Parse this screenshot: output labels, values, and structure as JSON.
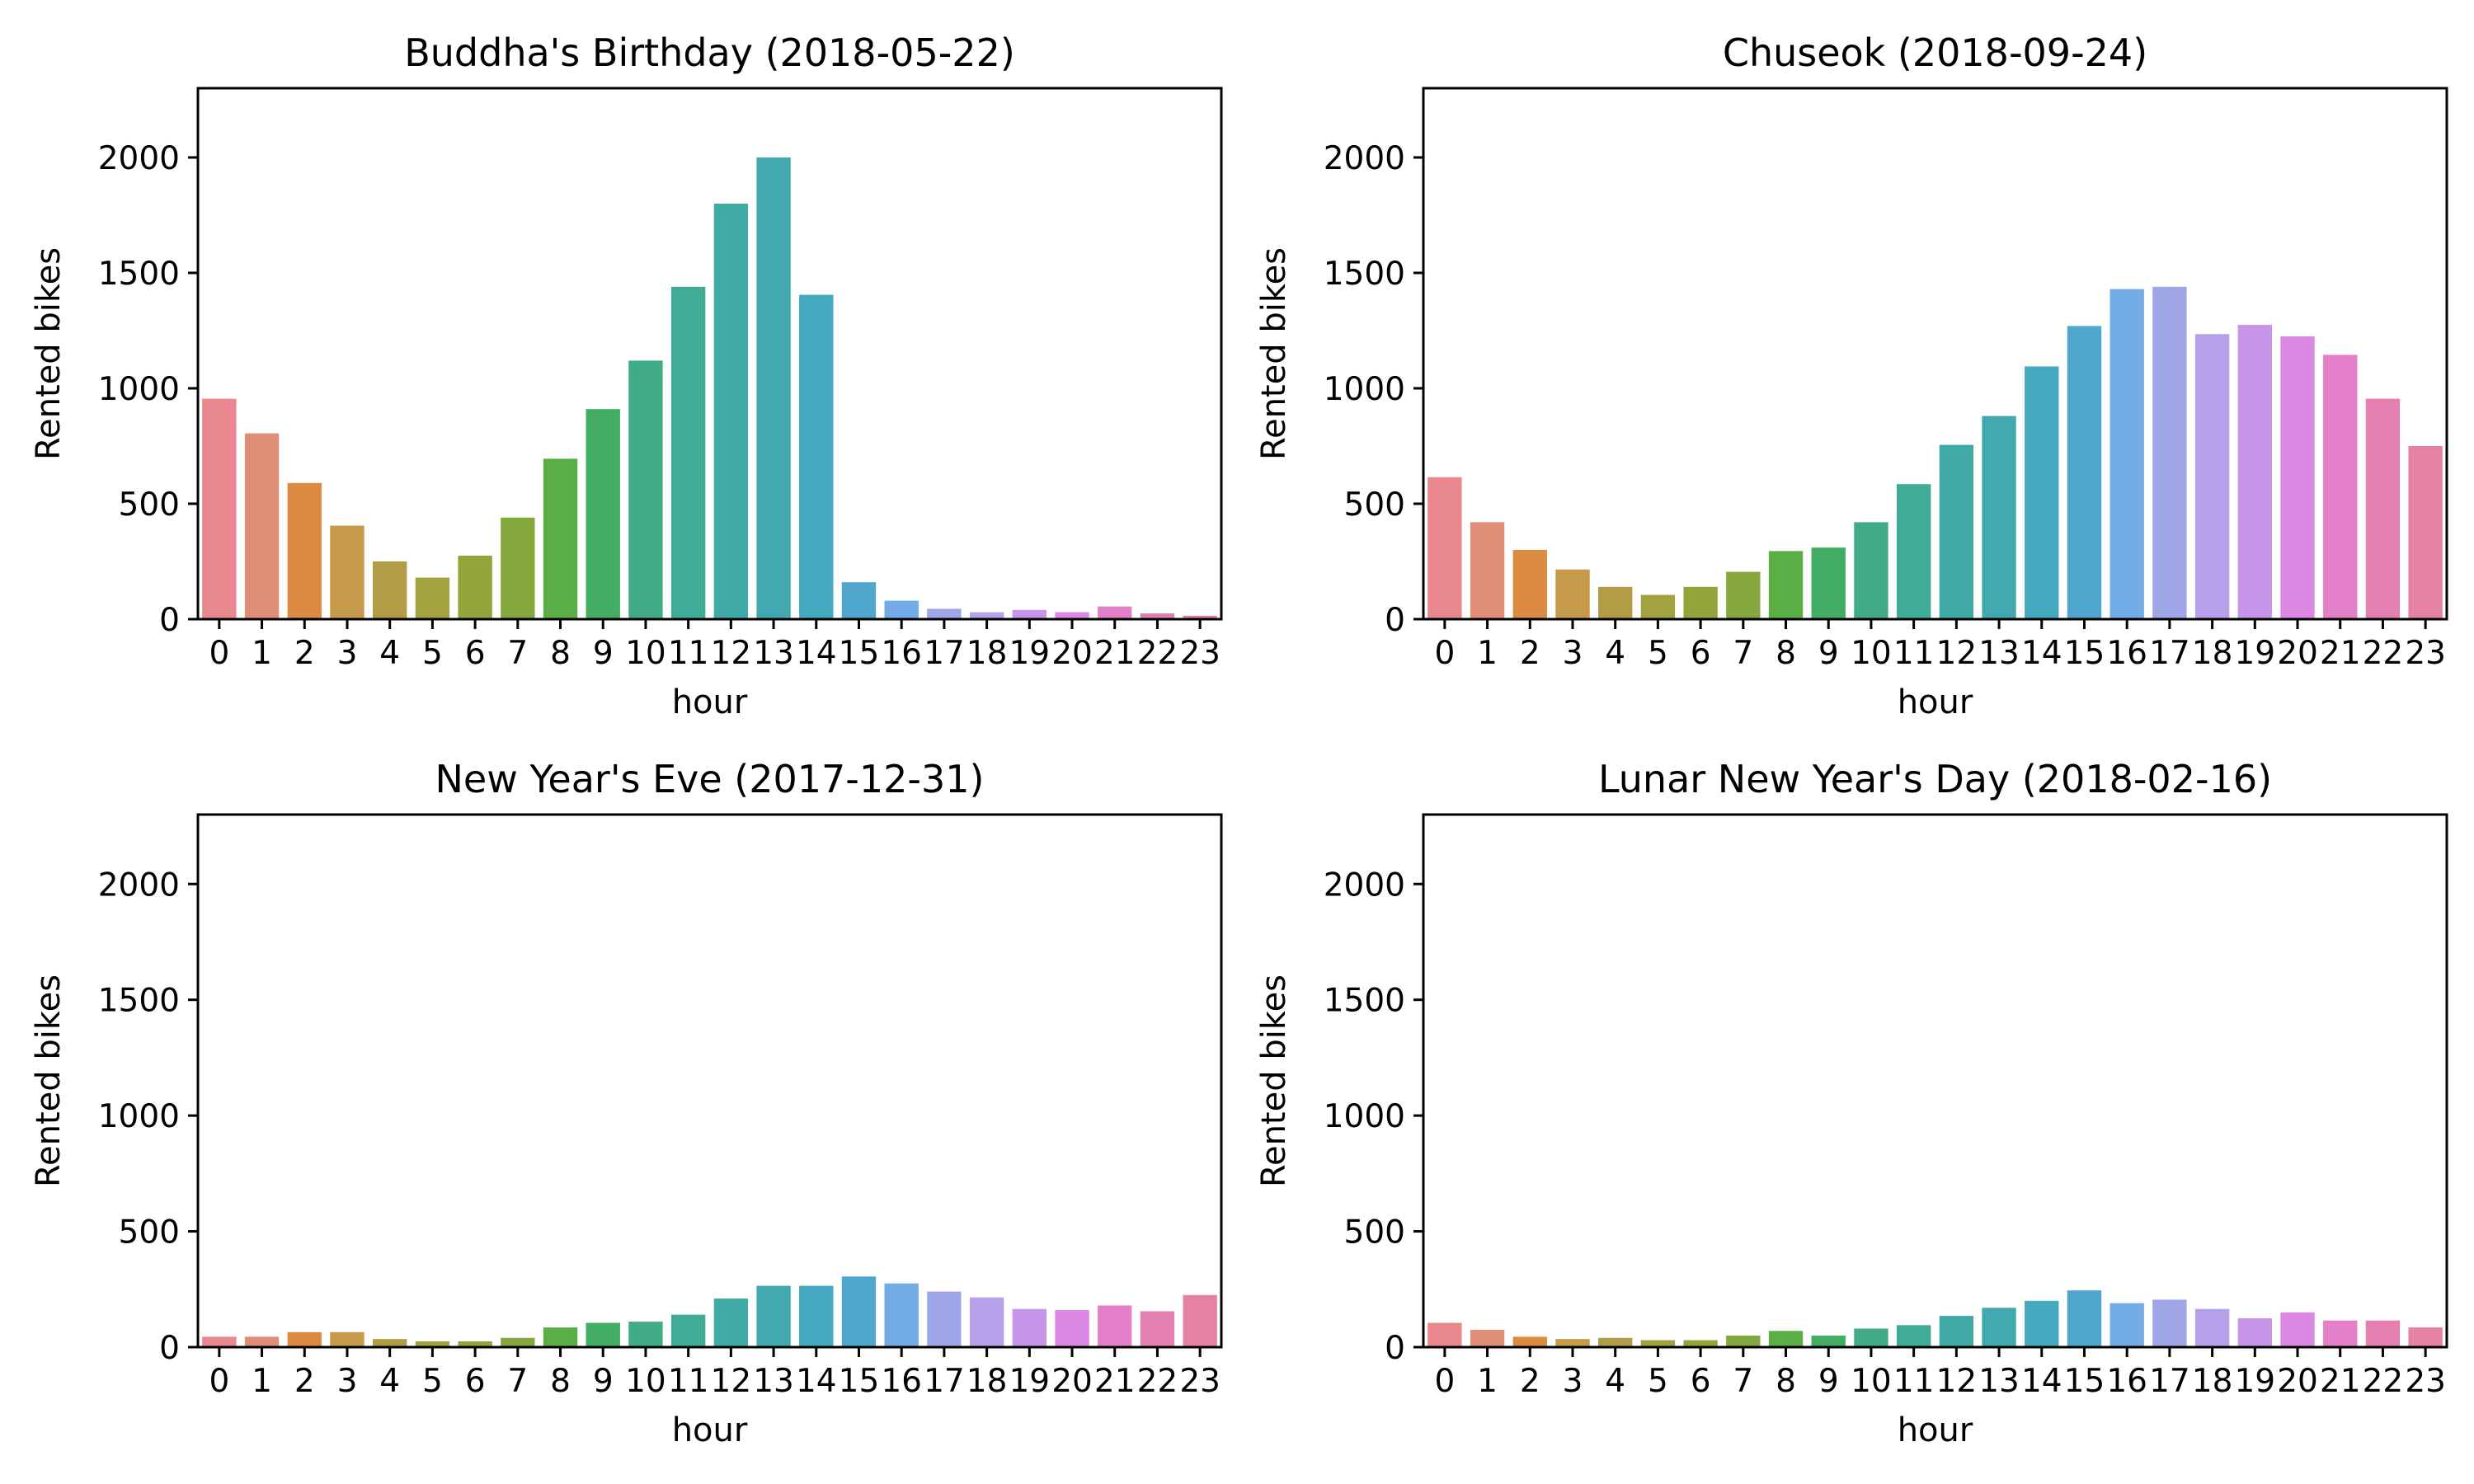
{
  "chart_data": [
    {
      "type": "bar",
      "title": "Buddha's Birthday (2018-05-22)",
      "xlabel": "hour",
      "ylabel": "Rented bikes",
      "ylim": [
        0,
        2300
      ],
      "yticks": [
        "0",
        "500",
        "1000",
        "1500",
        "2000"
      ],
      "categories": [
        "0",
        "1",
        "2",
        "3",
        "4",
        "5",
        "6",
        "7",
        "8",
        "9",
        "10",
        "11",
        "12",
        "13",
        "14",
        "15",
        "16",
        "17",
        "18",
        "19",
        "20",
        "21",
        "22",
        "23"
      ],
      "values": [
        955,
        805,
        590,
        405,
        250,
        180,
        275,
        440,
        695,
        910,
        1120,
        1440,
        1800,
        2000,
        1405,
        160,
        80,
        45,
        30,
        40,
        30,
        55,
        25,
        15
      ]
    },
    {
      "type": "bar",
      "title": "Chuseok (2018-09-24)",
      "xlabel": "hour",
      "ylabel": "Rented bikes",
      "ylim": [
        0,
        2300
      ],
      "yticks": [
        "0",
        "500",
        "1000",
        "1500",
        "2000"
      ],
      "categories": [
        "0",
        "1",
        "2",
        "3",
        "4",
        "5",
        "6",
        "7",
        "8",
        "9",
        "10",
        "11",
        "12",
        "13",
        "14",
        "15",
        "16",
        "17",
        "18",
        "19",
        "20",
        "21",
        "22",
        "23"
      ],
      "values": [
        615,
        420,
        300,
        215,
        140,
        105,
        140,
        205,
        295,
        310,
        420,
        585,
        755,
        880,
        1095,
        1270,
        1430,
        1440,
        1235,
        1275,
        1225,
        1145,
        955,
        750
      ]
    },
    {
      "type": "bar",
      "title": "New Year's Eve (2017-12-31)",
      "xlabel": "hour",
      "ylabel": "Rented bikes",
      "ylim": [
        0,
        2300
      ],
      "yticks": [
        "0",
        "500",
        "1000",
        "1500",
        "2000"
      ],
      "categories": [
        "0",
        "1",
        "2",
        "3",
        "4",
        "5",
        "6",
        "7",
        "8",
        "9",
        "10",
        "11",
        "12",
        "13",
        "14",
        "15",
        "16",
        "17",
        "18",
        "19",
        "20",
        "21",
        "22",
        "23"
      ],
      "values": [
        45,
        45,
        65,
        65,
        35,
        25,
        25,
        40,
        85,
        105,
        110,
        140,
        210,
        265,
        265,
        305,
        275,
        240,
        215,
        165,
        160,
        180,
        155,
        225
      ]
    },
    {
      "type": "bar",
      "title": "Lunar New Year's Day (2018-02-16)",
      "xlabel": "hour",
      "ylabel": "Rented bikes",
      "ylim": [
        0,
        2300
      ],
      "yticks": [
        "0",
        "500",
        "1000",
        "1500",
        "2000"
      ],
      "categories": [
        "0",
        "1",
        "2",
        "3",
        "4",
        "5",
        "6",
        "7",
        "8",
        "9",
        "10",
        "11",
        "12",
        "13",
        "14",
        "15",
        "16",
        "17",
        "18",
        "19",
        "20",
        "21",
        "22",
        "23"
      ],
      "values": [
        105,
        75,
        45,
        35,
        40,
        30,
        30,
        50,
        70,
        50,
        80,
        95,
        135,
        170,
        200,
        245,
        190,
        205,
        165,
        125,
        150,
        115,
        115,
        85
      ]
    }
  ],
  "palette": [
    "#e8888e",
    "#e18e78",
    "#dc8c42",
    "#c79a4a",
    "#b39c46",
    "#a2a23e",
    "#93a53a",
    "#85a83e",
    "#5aae45",
    "#42ad63",
    "#41ab85",
    "#40ab97",
    "#40aaa6",
    "#42a9b1",
    "#45a9c0",
    "#51a6cc",
    "#72abe6",
    "#9ea6e8",
    "#b6a1ea",
    "#c896e8",
    "#db87e4",
    "#e47fc9",
    "#e37fb1",
    "#e581a3"
  ]
}
